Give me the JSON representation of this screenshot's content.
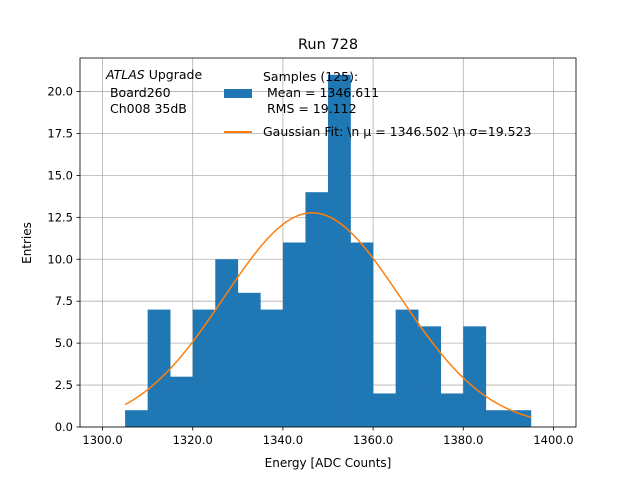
{
  "chart_data": {
    "type": "bar",
    "title": "Run 728",
    "xlabel": "Energy [ADC Counts]",
    "ylabel": "Entries",
    "xlim": [
      1295,
      1405
    ],
    "ylim": [
      0,
      22
    ],
    "grid": true,
    "bin_edges": [
      1305,
      1310,
      1315,
      1320,
      1325,
      1330,
      1335,
      1340,
      1345,
      1350,
      1355,
      1360,
      1365,
      1370,
      1375,
      1380,
      1385,
      1390,
      1395
    ],
    "values": [
      1,
      7,
      3,
      7,
      10,
      8,
      7,
      11,
      14,
      21,
      11,
      2,
      7,
      6,
      2,
      6,
      1,
      1
    ],
    "xticks": [
      1300,
      1320,
      1340,
      1360,
      1380,
      1400
    ],
    "xtick_labels": [
      "1300.0",
      "1320.0",
      "1340.0",
      "1360.0",
      "1380.0",
      "1400.0"
    ],
    "yticks": [
      0,
      2.5,
      5,
      7.5,
      10,
      12.5,
      15,
      17.5,
      20
    ],
    "ytick_labels": [
      "0.0",
      "2.5",
      "5.0",
      "7.5",
      "10.0",
      "12.5",
      "15.0",
      "17.5",
      "20.0"
    ],
    "fit": {
      "mu": 1346.502,
      "sigma": 19.523,
      "amplitude": 12.77,
      "x_range": [
        1305,
        1395
      ]
    },
    "legend": {
      "placement": "top-center",
      "hist_label_lines": [
        "Samples (125):",
        " Mean = 1346.611",
        " RMS = 19.112"
      ],
      "fit_label": "Gaussian Fit: \\n μ = 1346.502 \\n σ=19.523"
    },
    "annotation": {
      "italic": "ATLAS",
      "rest": " Upgrade",
      "lines": [
        " Board260",
        " Ch008 35dB"
      ]
    },
    "colors": {
      "bars": "#1f77b4",
      "fit": "#ff7f0e",
      "grid": "#b0b0b0"
    }
  }
}
